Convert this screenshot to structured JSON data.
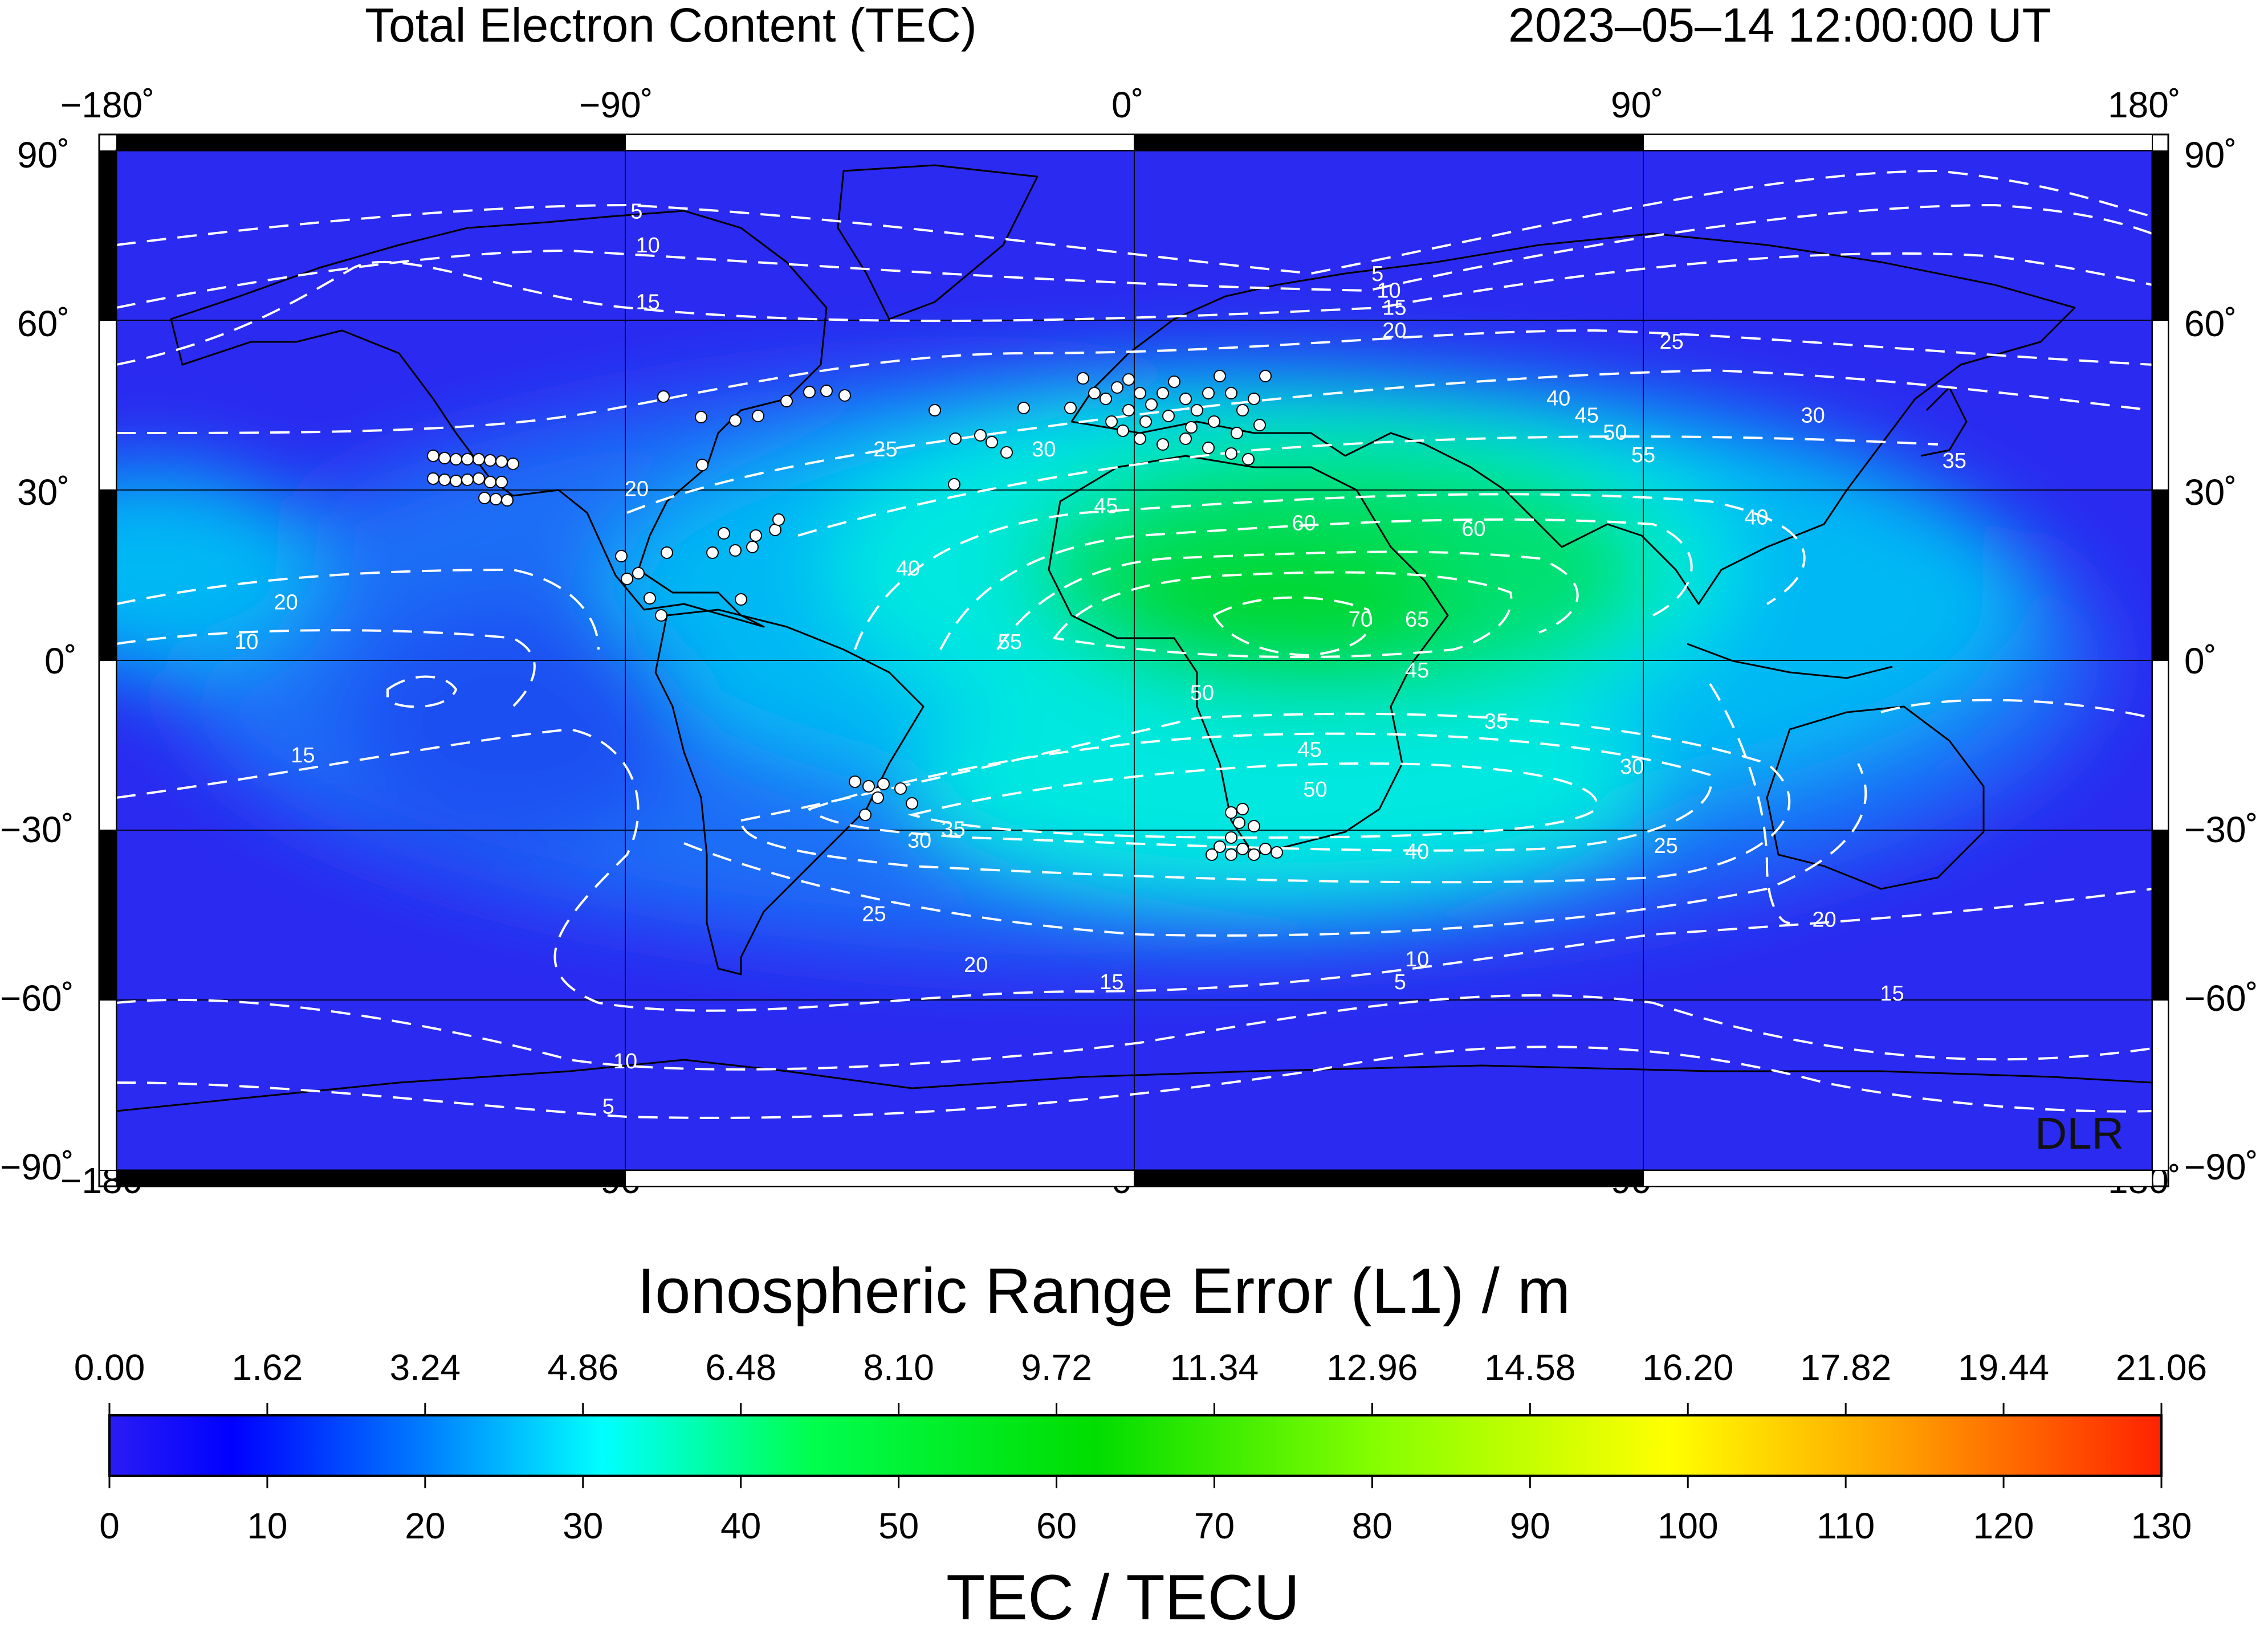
{
  "header": {
    "title": "Total Electron Content (TEC)",
    "timestamp": "2023–05–14  12:00:00 UT"
  },
  "map": {
    "lon_ticks": [
      "−180˚",
      "−90˚",
      "0˚",
      "90˚",
      "180˚"
    ],
    "lat_ticks": [
      "90˚",
      "60˚",
      "30˚",
      "0˚",
      "−30˚",
      "−60˚",
      "−90˚"
    ],
    "watermark": "DLR",
    "contour_levels": [
      5,
      10,
      15,
      20,
      25,
      30,
      35,
      40,
      45,
      50,
      55,
      60,
      65,
      70
    ],
    "contour_labels": [
      {
        "text": "5",
        "lon": -88,
        "lat": 79
      },
      {
        "text": "10",
        "lon": -86,
        "lat": 73
      },
      {
        "text": "15",
        "lon": -86,
        "lat": 63
      },
      {
        "text": "20",
        "lon": -88,
        "lat": 30
      },
      {
        "text": "25",
        "lon": -44,
        "lat": 37
      },
      {
        "text": "30",
        "lon": -16,
        "lat": 37
      },
      {
        "text": "5",
        "lon": 43,
        "lat": 68
      },
      {
        "text": "10",
        "lon": 45,
        "lat": 65
      },
      {
        "text": "15",
        "lon": 46,
        "lat": 62
      },
      {
        "text": "20",
        "lon": 46,
        "lat": 58
      },
      {
        "text": "25",
        "lon": 95,
        "lat": 56
      },
      {
        "text": "30",
        "lon": 120,
        "lat": 43
      },
      {
        "text": "35",
        "lon": 145,
        "lat": 35
      },
      {
        "text": "40",
        "lon": 75,
        "lat": 46
      },
      {
        "text": "45",
        "lon": 80,
        "lat": 43
      },
      {
        "text": "50",
        "lon": 85,
        "lat": 40
      },
      {
        "text": "55",
        "lon": 90,
        "lat": 36
      },
      {
        "text": "40",
        "lon": 110,
        "lat": 25
      },
      {
        "text": "45",
        "lon": -5,
        "lat": 27
      },
      {
        "text": "60",
        "lon": 30,
        "lat": 24
      },
      {
        "text": "60",
        "lon": 60,
        "lat": 23
      },
      {
        "text": "40",
        "lon": -40,
        "lat": 16
      },
      {
        "text": "55",
        "lon": -22,
        "lat": 3
      },
      {
        "text": "70",
        "lon": 40,
        "lat": 7
      },
      {
        "text": "65",
        "lon": 50,
        "lat": 7
      },
      {
        "text": "45",
        "lon": 50,
        "lat": -2
      },
      {
        "text": "50",
        "lon": 12,
        "lat": -6
      },
      {
        "text": "20",
        "lon": -150,
        "lat": 10
      },
      {
        "text": "10",
        "lon": -157,
        "lat": 3
      },
      {
        "text": "15",
        "lon": -147,
        "lat": -17
      },
      {
        "text": "35",
        "lon": 64,
        "lat": -11
      },
      {
        "text": "30",
        "lon": 88,
        "lat": -19
      },
      {
        "text": "45",
        "lon": 31,
        "lat": -16
      },
      {
        "text": "50",
        "lon": 32,
        "lat": -23
      },
      {
        "text": "35",
        "lon": -32,
        "lat": -30
      },
      {
        "text": "30",
        "lon": -38,
        "lat": -32
      },
      {
        "text": "25",
        "lon": 94,
        "lat": -33
      },
      {
        "text": "40",
        "lon": 50,
        "lat": -34
      },
      {
        "text": "25",
        "lon": -46,
        "lat": -45
      },
      {
        "text": "20",
        "lon": -28,
        "lat": -54
      },
      {
        "text": "15",
        "lon": -4,
        "lat": -57
      },
      {
        "text": "10",
        "lon": 50,
        "lat": -53
      },
      {
        "text": "5",
        "lon": 47,
        "lat": -57
      },
      {
        "text": "20",
        "lon": 122,
        "lat": -46
      },
      {
        "text": "15",
        "lon": 134,
        "lat": -59
      },
      {
        "text": "10",
        "lon": -90,
        "lat": -71
      },
      {
        "text": "5",
        "lon": -93,
        "lat": -79
      }
    ]
  },
  "colorbar": {
    "top_title": "Ionospheric Range Error (L1) / m",
    "top_ticks": [
      "0.00",
      "1.62",
      "3.24",
      "4.86",
      "6.48",
      "8.10",
      "9.72",
      "11.34",
      "12.96",
      "14.58",
      "16.20",
      "17.82",
      "19.44",
      "21.06"
    ],
    "bottom_ticks": [
      "0",
      "10",
      "20",
      "30",
      "40",
      "50",
      "60",
      "70",
      "80",
      "90",
      "100",
      "110",
      "120",
      "130"
    ],
    "bottom_title": "TEC / TECU",
    "range": [
      0,
      130
    ],
    "colors": [
      "#2a1cf5",
      "#0000ff",
      "#0078ff",
      "#00ffff",
      "#00ff50",
      "#00dd00",
      "#88ff00",
      "#ffff00",
      "#ff9900",
      "#ff2200"
    ]
  },
  "colors": {
    "background_blue": "#2a2af0",
    "mid_blue": "#1f6ef7",
    "cyan": "#00e8f0",
    "green": "#00e070",
    "contour": "#ffffff",
    "station": "#ffffff"
  }
}
